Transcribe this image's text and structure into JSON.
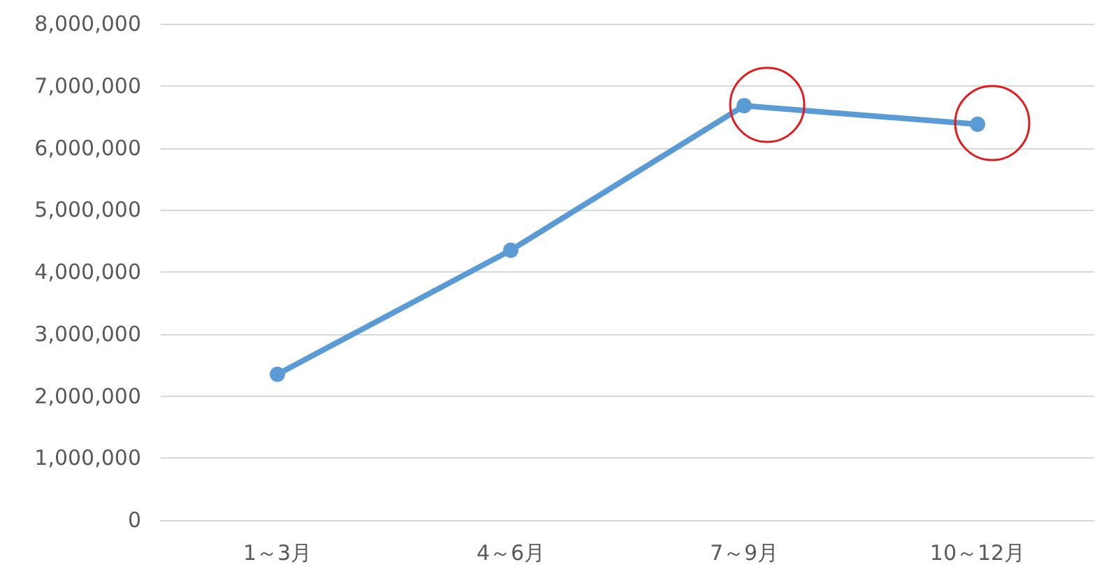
{
  "chart_data": {
    "type": "line",
    "categories": [
      "1～3月",
      "4～6月",
      "7～9月",
      "10～12月"
    ],
    "series": [
      {
        "color": "#5b9bd5",
        "values": [
          2350000,
          4350000,
          6680000,
          6380000
        ]
      }
    ],
    "ylim": [
      0,
      8000000
    ],
    "yticks": [
      0,
      {
        "value": 1000000,
        "label": "1,000,000"
      },
      {
        "value": 2000000,
        "label": "2,000,000"
      },
      {
        "value": 3000000,
        "label": "3,000,000"
      },
      {
        "value": 4000000,
        "label": "4,000,000"
      },
      {
        "value": 5000000,
        "label": "5,000,000"
      },
      {
        "value": 6000000,
        "label": "6,000,000"
      },
      {
        "value": 7000000,
        "label": "7,000,000"
      },
      {
        "value": 8000000,
        "label": "8,000,000"
      }
    ],
    "grid": "y",
    "marker": "circle",
    "line_style": "solid"
  }
}
